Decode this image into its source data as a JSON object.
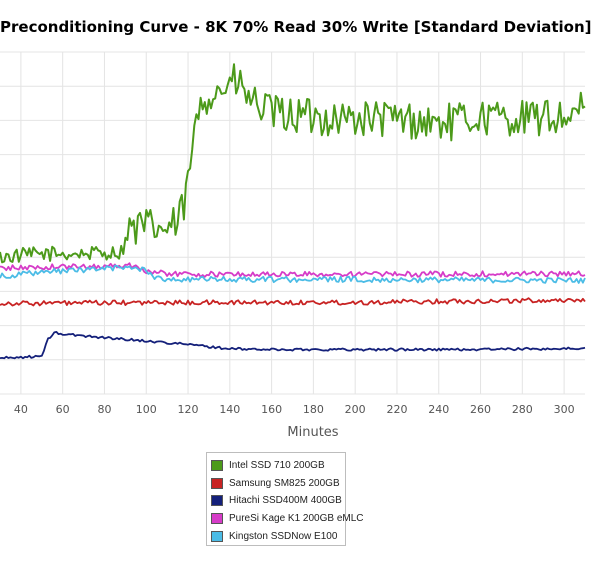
{
  "chart_data": {
    "type": "line",
    "title": "Preconditioning Curve - 8K 70% Read 30% Write [Standard Deviation]",
    "xlabel": "Minutes",
    "ylabel": "",
    "xlim": [
      30,
      310
    ],
    "ylim": [
      0,
      100
    ],
    "x_ticks": [
      "40",
      "60",
      "80",
      "100",
      "120",
      "140",
      "160",
      "180",
      "200",
      "220",
      "240",
      "260",
      "280",
      "300"
    ],
    "grid": true,
    "legend": "bottom",
    "series": [
      {
        "name": "Intel SSD 710 200GB",
        "color": "#4c9a1a",
        "x": [
          30,
          50,
          70,
          88,
          92,
          100,
          110,
          115,
          118,
          120,
          122,
          126,
          128,
          132,
          136,
          140,
          144,
          148,
          152,
          160,
          180,
          200,
          220,
          240,
          260,
          280,
          300,
          310
        ],
        "values": [
          40,
          41,
          41,
          41.5,
          48,
          49,
          48,
          50,
          55,
          62,
          71,
          86,
          87,
          88,
          89,
          91,
          91,
          87,
          85,
          82,
          81,
          80.5,
          80.5,
          79,
          81,
          80.5,
          81,
          83
        ]
      },
      {
        "name": "Samsung SM825 200GB",
        "color": "#c82323",
        "x": [
          30,
          100,
          200,
          310
        ],
        "values": [
          26.5,
          26.7,
          26.8,
          27.5
        ]
      },
      {
        "name": "Hitachi SSD400M 400GB",
        "color": "#14207a",
        "x": [
          30,
          50,
          53,
          56,
          60,
          80,
          100,
          120,
          140,
          160,
          200,
          250,
          310
        ],
        "values": [
          10.5,
          11,
          16,
          18,
          17.5,
          16.5,
          15.5,
          14.5,
          13.2,
          13,
          13,
          13,
          13.3
        ]
      },
      {
        "name": "PureSi Kage K1 200GB eMLC",
        "color": "#d63cc8",
        "x": [
          30,
          60,
          95,
          102,
          120,
          200,
          310
        ],
        "values": [
          36.8,
          37.2,
          37.6,
          35.5,
          35,
          35,
          35.2
        ]
      },
      {
        "name": "Kingston SSDNow E100",
        "color": "#4bbce6",
        "x": [
          30,
          60,
          90,
          100,
          104,
          120,
          200,
          310
        ],
        "values": [
          34.5,
          36,
          37,
          36.5,
          33.8,
          33.5,
          33.5,
          33.2
        ]
      }
    ]
  }
}
